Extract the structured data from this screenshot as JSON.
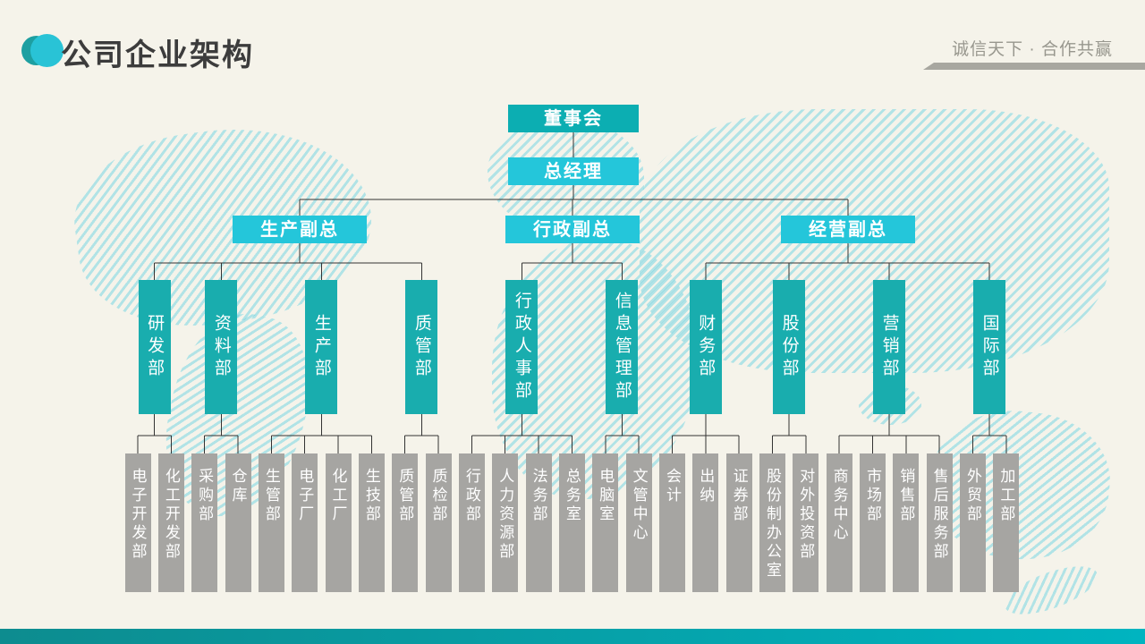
{
  "header": {
    "title": "公司企业架构",
    "slogan": "诚信天下 · 合作共赢"
  },
  "colors": {
    "board": "#0caeb2",
    "cyan": "#24c6da",
    "dept": "#19adae",
    "leaf": "#a6a5a2",
    "footer_left": "#0d8c8f",
    "footer_right": "#00b4c0",
    "map_stripe": "#9ee3ee",
    "background": "#f5f3ea"
  },
  "org": {
    "root": {
      "label": "董事会"
    },
    "gm": {
      "label": "总经理"
    },
    "vps": [
      {
        "label": "生产副总",
        "depts": [
          {
            "label": "研发部",
            "children": [
              "电子开发部",
              "化工开发部"
            ]
          },
          {
            "label": "资料部",
            "children": [
              "采购部",
              "仓库"
            ]
          },
          {
            "label": "生产部",
            "children": [
              "生管部",
              "电子厂",
              "化工厂",
              "生技部"
            ]
          },
          {
            "label": "质管部",
            "children": [
              "质管部",
              "质检部"
            ]
          }
        ]
      },
      {
        "label": "行政副总",
        "depts": [
          {
            "label": "行政人事部",
            "children": [
              "行政部",
              "人力资源部",
              "法务部",
              "总务室"
            ]
          },
          {
            "label": "信息管理部",
            "children": [
              "电脑室",
              "文管中心"
            ]
          }
        ]
      },
      {
        "label": "经营副总",
        "depts": [
          {
            "label": "财务部",
            "children": [
              "会计",
              "出纳",
              "证券部"
            ]
          },
          {
            "label": "股份部",
            "children": [
              "股份制办公室",
              "对外投资部"
            ]
          },
          {
            "label": "营销部",
            "children": [
              "商务中心",
              "市场部",
              "销售部",
              "售后服务部"
            ]
          },
          {
            "label": "国际部",
            "children": [
              "外贸部",
              "加工部"
            ]
          }
        ]
      }
    ]
  }
}
